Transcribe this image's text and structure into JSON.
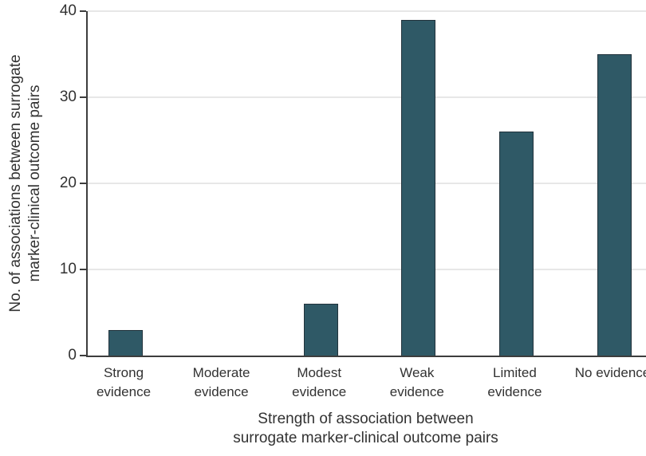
{
  "chart_data": {
    "type": "bar",
    "categories": [
      "Strong evidence",
      "Moderate evidence",
      "Modest evidence",
      "Weak evidence",
      "Limited evidence",
      "No evidence"
    ],
    "values": [
      3,
      0,
      6,
      39,
      26,
      35
    ],
    "xlabel": "Strength of association between\nsurrogate marker-clinical outcome pairs",
    "ylabel": "No. of associations between surrogate\nmarker-clinical outcome pairs",
    "ylim": [
      0,
      40
    ],
    "yticks": [
      0,
      10,
      20,
      30,
      40
    ],
    "grid": "horizontal",
    "legend": "none",
    "bar_color": "#2f5966",
    "bar_border_color": "#22333c",
    "axis_color": "#3d3d3d",
    "gridline_color": "#e7e7e7",
    "text_color": "#323232"
  }
}
